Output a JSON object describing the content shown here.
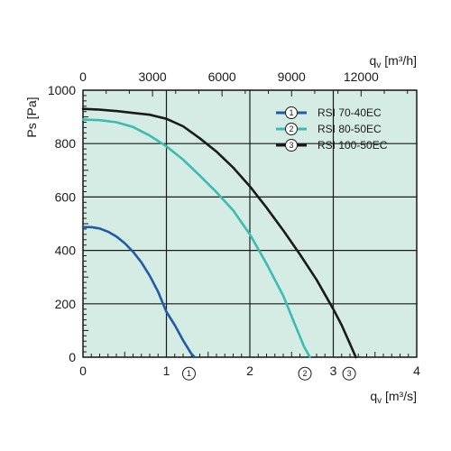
{
  "chart_data": {
    "type": "line",
    "xlabel": "q",
    "xlabel_sub": "v",
    "xlabel_unit": "[m³/s]",
    "x2label": "q",
    "x2label_sub": "v",
    "x2label_unit": "[m³/h]",
    "ylabel": "Ps [Pa]",
    "xlim": [
      0,
      4
    ],
    "ylim": [
      0,
      1000
    ],
    "x2lim": [
      0,
      14400
    ],
    "xticks": [
      "0",
      "1",
      "2",
      "3",
      "4"
    ],
    "x2ticks": [
      "0",
      "3000",
      "6000",
      "9000",
      "12000"
    ],
    "x2tick_values": [
      0,
      3000,
      6000,
      9000,
      12000
    ],
    "yticks": [
      "0",
      "200",
      "400",
      "600",
      "800",
      "1000"
    ],
    "grid": true,
    "background": "#d4ece3",
    "legend_position": "top-right",
    "series": [
      {
        "name": "RSI 70-40EC",
        "marker": "1",
        "color": "#1f5ba6",
        "x": [
          0,
          0.1,
          0.2,
          0.3,
          0.4,
          0.5,
          0.6,
          0.7,
          0.8,
          0.9,
          1.0,
          1.1,
          1.2,
          1.3,
          1.34
        ],
        "y": [
          487,
          487,
          482,
          470,
          452,
          427,
          395,
          355,
          305,
          245,
          170,
          120,
          63,
          12,
          0
        ],
        "marker_at": [
          1.27,
          60
        ]
      },
      {
        "name": "RSI 80-50EC",
        "marker": "2",
        "color": "#3bbcb1",
        "x": [
          0,
          0.2,
          0.4,
          0.6,
          0.8,
          1.0,
          1.2,
          1.4,
          1.6,
          1.8,
          2.0,
          2.2,
          2.4,
          2.55,
          2.65,
          2.72
        ],
        "y": [
          890,
          888,
          880,
          862,
          830,
          790,
          740,
          680,
          618,
          550,
          460,
          350,
          230,
          115,
          40,
          0
        ],
        "marker_at": [
          2.66,
          60
        ]
      },
      {
        "name": "RSI 100-50EC",
        "marker": "3",
        "color": "#1a1a1a",
        "x": [
          0,
          0.2,
          0.4,
          0.6,
          0.8,
          1.0,
          1.2,
          1.4,
          1.6,
          1.8,
          2.0,
          2.2,
          2.4,
          2.6,
          2.8,
          3.0,
          3.1,
          3.2,
          3.27
        ],
        "y": [
          930,
          927,
          922,
          915,
          908,
          893,
          865,
          820,
          770,
          710,
          640,
          560,
          475,
          385,
          290,
          180,
          120,
          50,
          0
        ],
        "marker_at": [
          3.19,
          60
        ]
      }
    ]
  }
}
